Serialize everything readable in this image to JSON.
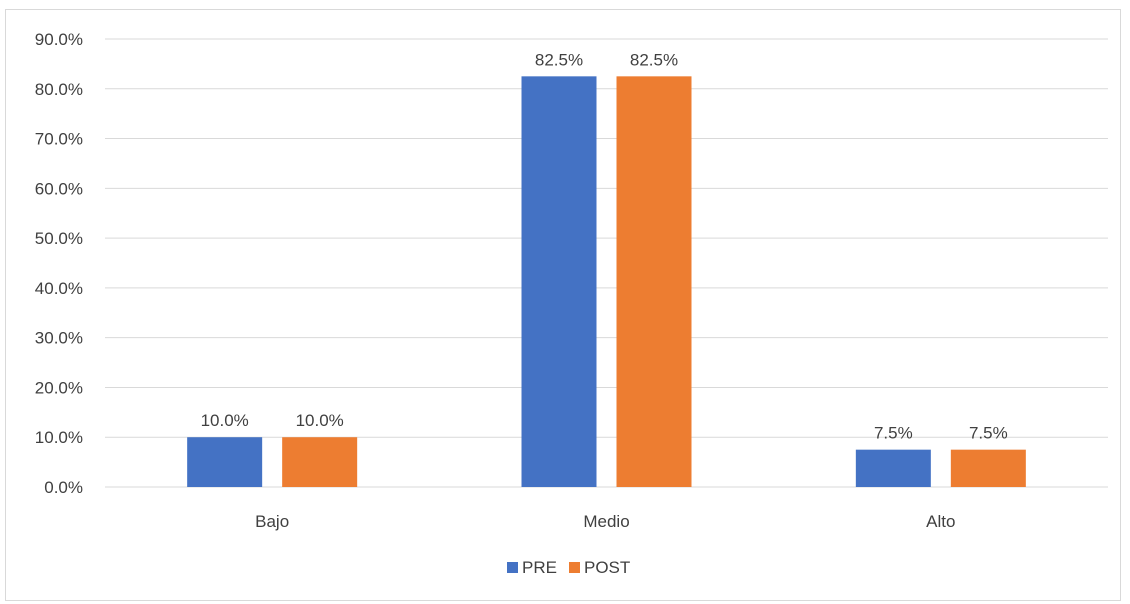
{
  "chart_data": {
    "type": "bar",
    "title": "",
    "xlabel": "",
    "ylabel": "",
    "categories": [
      "Bajo",
      "Medio",
      "Alto"
    ],
    "series": [
      {
        "name": "PRE",
        "values": [
          10.0,
          82.5,
          7.5
        ],
        "labels": [
          "10.0%",
          "82.5%",
          "7.5%"
        ],
        "color": "#4472c4"
      },
      {
        "name": "POST",
        "values": [
          10.0,
          82.5,
          7.5
        ],
        "labels": [
          "10.0%",
          "82.5%",
          "7.5%"
        ],
        "color": "#ed7d31"
      }
    ],
    "ylim": [
      0,
      90
    ],
    "y_ticks": [
      0,
      10,
      20,
      30,
      40,
      50,
      60,
      70,
      80,
      90
    ],
    "y_tick_labels": [
      "0.0%",
      "10.0%",
      "20.0%",
      "30.0%",
      "40.0%",
      "50.0%",
      "60.0%",
      "70.0%",
      "80.0%",
      "90.0%"
    ],
    "grid": true,
    "gridline_color": "#d9d9d9",
    "legend_position": "bottom"
  }
}
